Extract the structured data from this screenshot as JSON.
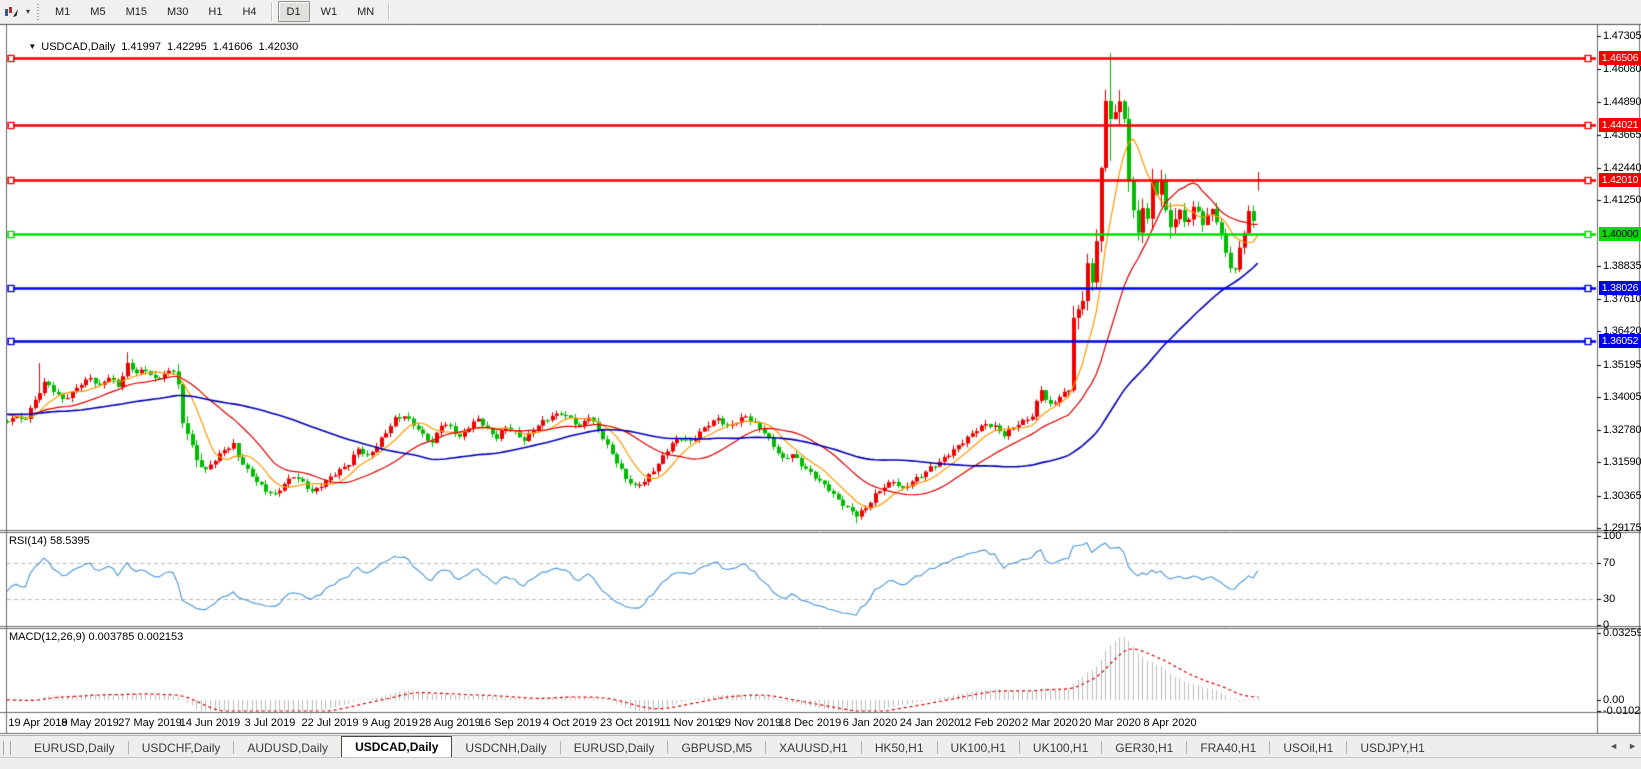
{
  "toolbar": {
    "timeframes": [
      "M1",
      "M5",
      "M15",
      "M30",
      "H1",
      "H4",
      "D1",
      "W1",
      "MN"
    ],
    "active_timeframe": "D1"
  },
  "window_title": {
    "dropdown_glyph": "▼",
    "symbol": "USDCAD,Daily",
    "open": "1.41997",
    "high": "1.42295",
    "low": "1.41606",
    "close": "1.42030"
  },
  "price_axis": {
    "ticks": [
      {
        "label": "1.47305",
        "price": 1.47305
      },
      {
        "label": "1.46080",
        "price": 1.4608
      },
      {
        "label": "1.44890",
        "price": 1.4489
      },
      {
        "label": "1.43665",
        "price": 1.43665
      },
      {
        "label": "1.42440",
        "price": 1.4244
      },
      {
        "label": "1.41250",
        "price": 1.4125
      },
      {
        "label": "1.38835",
        "price": 1.38835
      },
      {
        "label": "1.37610",
        "price": 1.3761
      },
      {
        "label": "1.36420",
        "price": 1.3642
      },
      {
        "label": "1.35195",
        "price": 1.35195
      },
      {
        "label": "1.34005",
        "price": 1.34005
      },
      {
        "label": "1.32780",
        "price": 1.3278
      },
      {
        "label": "1.31590",
        "price": 1.3159
      },
      {
        "label": "1.30365",
        "price": 1.30365
      },
      {
        "label": "1.29175",
        "price": 1.29175
      }
    ]
  },
  "hlines": [
    {
      "price": 1.46506,
      "label": "1.46506",
      "color": "#f40000",
      "text_color": "#ffffff"
    },
    {
      "price": 1.44021,
      "label": "1.44021",
      "color": "#f40000",
      "text_color": "#ffffff"
    },
    {
      "price": 1.4201,
      "label": "1.42010",
      "color": "#f40000",
      "text_color": "#ffffff"
    },
    {
      "price": 1.4,
      "label": "1.40000",
      "color": "#00dc00",
      "text_color": "#000000"
    },
    {
      "price": 1.38026,
      "label": "1.38026",
      "color": "#0000e8",
      "text_color": "#ffffff"
    },
    {
      "price": 1.36052,
      "label": "1.36052",
      "color": "#0000e8",
      "text_color": "#ffffff"
    }
  ],
  "rsi_panel": {
    "label": "RSI(14) 58.5395",
    "axis_labels": [
      {
        "label": "100",
        "value": 100
      },
      {
        "label": "70",
        "value": 70
      },
      {
        "label": "30",
        "value": 30
      },
      {
        "label": "0",
        "value": 0
      }
    ],
    "dashed_levels": [
      70,
      30
    ]
  },
  "macd_panel": {
    "label": "MACD(12,26,9) 0.003785 0.002153",
    "axis_labels": [
      {
        "label": "0.032595",
        "value": 0.032595
      },
      {
        "label": "0.00",
        "value": 0
      },
      {
        "label": "-0.010227",
        "value": -0.010227
      }
    ]
  },
  "date_axis": {
    "labels": [
      "19 Apr 2019",
      "8 May 2019",
      "27 May 2019",
      "14 Jun 2019",
      "3 Jul 2019",
      "22 Jul 2019",
      "9 Aug 2019",
      "28 Aug 2019",
      "16 Sep 2019",
      "4 Oct 2019",
      "23 Oct 2019",
      "11 Nov 2019",
      "29 Nov 2019",
      "18 Dec 2019",
      "6 Jan 2020",
      "24 Jan 2020",
      "12 Feb 2020",
      "2 Mar 2020",
      "20 Mar 2020",
      "8 Apr 2020"
    ]
  },
  "tabs": {
    "items": [
      {
        "label": "EURUSD,Daily",
        "active": false
      },
      {
        "label": "USDCHF,Daily",
        "active": false
      },
      {
        "label": "AUDUSD,Daily",
        "active": false
      },
      {
        "label": "USDCAD,Daily",
        "active": true
      },
      {
        "label": "USDCNH,Daily",
        "active": false
      },
      {
        "label": "EURUSD,Daily",
        "active": false
      },
      {
        "label": "GBPUSD,M5",
        "active": false
      },
      {
        "label": "XAUUSD,H1",
        "active": false
      },
      {
        "label": "HK50,H1",
        "active": false
      },
      {
        "label": "UK100,H1",
        "active": false
      },
      {
        "label": "UK100,H1",
        "active": false
      },
      {
        "label": "GER30,H1",
        "active": false
      },
      {
        "label": "FRA40,H1",
        "active": false
      },
      {
        "label": "USOil,H1",
        "active": false
      },
      {
        "label": "USDJPY,H1",
        "active": false
      }
    ],
    "scroll_left": "◄",
    "scroll_right": "►"
  },
  "chart_data": {
    "type": "candlestick",
    "symbol": "USDCAD",
    "timeframe": "Daily",
    "colors": {
      "bull_candle": "#ee0000",
      "bear_candle": "#00bb00",
      "ma_fast": "#ff9900",
      "ma_mid": "#dd0000",
      "ma_slow": "#0000b4",
      "rsi_line": "#4a96d8",
      "rsi_dashed_level": "#bbbbbb",
      "macd_histogram": "#bdbdbd",
      "macd_signal": "#e00000",
      "background": "#ffffff",
      "frame": "#6a6a6a"
    },
    "ma_periods": {
      "fast": 8,
      "mid": 21,
      "slow": 55
    },
    "price_range_top": 1.47305,
    "price_range_bottom": 1.29175,
    "rsi_scale": [
      0,
      100
    ],
    "close_anchors": [
      [
        0,
        1.336
      ],
      [
        1,
        1.3385
      ],
      [
        3,
        1.3455
      ],
      [
        5,
        1.3425
      ],
      [
        7,
        1.339
      ],
      [
        9,
        1.3415
      ],
      [
        11,
        1.345
      ],
      [
        13,
        1.347
      ],
      [
        15,
        1.344
      ],
      [
        17,
        1.3475
      ],
      [
        19,
        1.344
      ],
      [
        21,
        1.352
      ],
      [
        23,
        1.349
      ],
      [
        25,
        1.35
      ],
      [
        27,
        1.3465
      ],
      [
        29,
        1.3485
      ],
      [
        31,
        1.35
      ],
      [
        32,
        1.3445
      ],
      [
        33,
        1.33
      ],
      [
        34,
        1.327
      ],
      [
        35,
        1.322
      ],
      [
        36,
        1.3165
      ],
      [
        38,
        1.313
      ],
      [
        40,
        1.317
      ],
      [
        42,
        1.3205
      ],
      [
        44,
        1.3225
      ],
      [
        45,
        1.318
      ],
      [
        47,
        1.313
      ],
      [
        49,
        1.309
      ],
      [
        51,
        1.3055
      ],
      [
        53,
        1.304
      ],
      [
        55,
        1.308
      ],
      [
        57,
        1.311
      ],
      [
        59,
        1.3085
      ],
      [
        61,
        1.305
      ],
      [
        63,
        1.3075
      ],
      [
        65,
        1.3105
      ],
      [
        67,
        1.313
      ],
      [
        69,
        1.3155
      ],
      [
        71,
        1.321
      ],
      [
        73,
        1.318
      ],
      [
        75,
        1.322
      ],
      [
        77,
        1.327
      ],
      [
        79,
        1.332
      ],
      [
        81,
        1.333
      ],
      [
        83,
        1.33
      ],
      [
        85,
        1.326
      ],
      [
        87,
        1.323
      ],
      [
        89,
        1.33
      ],
      [
        91,
        1.329
      ],
      [
        93,
        1.325
      ],
      [
        95,
        1.329
      ],
      [
        97,
        1.332
      ],
      [
        99,
        1.328
      ],
      [
        101,
        1.325
      ],
      [
        103,
        1.329
      ],
      [
        105,
        1.327
      ],
      [
        107,
        1.324
      ],
      [
        109,
        1.328
      ],
      [
        111,
        1.331
      ],
      [
        113,
        1.333
      ],
      [
        115,
        1.334
      ],
      [
        117,
        1.332
      ],
      [
        119,
        1.329
      ],
      [
        121,
        1.333
      ],
      [
        123,
        1.328
      ],
      [
        125,
        1.322
      ],
      [
        127,
        1.316
      ],
      [
        129,
        1.31
      ],
      [
        131,
        1.307
      ],
      [
        133,
        1.309
      ],
      [
        135,
        1.313
      ],
      [
        137,
        1.318
      ],
      [
        139,
        1.323
      ],
      [
        141,
        1.325
      ],
      [
        143,
        1.3235
      ],
      [
        145,
        1.327
      ],
      [
        147,
        1.33
      ],
      [
        149,
        1.332
      ],
      [
        151,
        1.329
      ],
      [
        153,
        1.331
      ],
      [
        155,
        1.333
      ],
      [
        157,
        1.33
      ],
      [
        159,
        1.327
      ],
      [
        161,
        1.322
      ],
      [
        163,
        1.317
      ],
      [
        165,
        1.319
      ],
      [
        167,
        1.315
      ],
      [
        169,
        1.312
      ],
      [
        171,
        1.309
      ],
      [
        173,
        1.306
      ],
      [
        175,
        1.302
      ],
      [
        177,
        1.299
      ],
      [
        179,
        1.2965
      ],
      [
        181,
        1.299
      ],
      [
        183,
        1.304
      ],
      [
        185,
        1.307
      ],
      [
        187,
        1.309
      ],
      [
        189,
        1.306
      ],
      [
        191,
        1.309
      ],
      [
        193,
        1.311
      ],
      [
        195,
        1.314
      ],
      [
        197,
        1.316
      ],
      [
        199,
        1.319
      ],
      [
        201,
        1.322
      ],
      [
        203,
        1.325
      ],
      [
        205,
        1.328
      ],
      [
        207,
        1.33
      ],
      [
        209,
        1.329
      ],
      [
        211,
        1.326
      ],
      [
        213,
        1.329
      ],
      [
        215,
        1.331
      ],
      [
        217,
        1.333
      ],
      [
        219,
        1.343
      ],
      [
        220,
        1.339
      ],
      [
        221,
        1.337
      ],
      [
        223,
        1.34
      ],
      [
        225,
        1.343
      ],
      [
        226,
        1.369
      ],
      [
        227,
        1.372
      ],
      [
        228,
        1.376
      ],
      [
        229,
        1.389
      ],
      [
        230,
        1.382
      ],
      [
        231,
        1.398
      ],
      [
        232,
        1.424
      ],
      [
        233,
        1.449
      ],
      [
        234,
        1.443
      ],
      [
        235,
        1.4445
      ],
      [
        236,
        1.449
      ],
      [
        237,
        1.443
      ],
      [
        238,
        1.419
      ],
      [
        239,
        1.409
      ],
      [
        240,
        1.401
      ],
      [
        241,
        1.409
      ],
      [
        242,
        1.406
      ],
      [
        243,
        1.42
      ],
      [
        244,
        1.414
      ],
      [
        245,
        1.42
      ],
      [
        246,
        1.409
      ],
      [
        247,
        1.402
      ],
      [
        248,
        1.406
      ],
      [
        249,
        1.409
      ],
      [
        250,
        1.404
      ],
      [
        251,
        1.406
      ],
      [
        252,
        1.41
      ],
      [
        253,
        1.408
      ],
      [
        254,
        1.404
      ],
      [
        255,
        1.407
      ],
      [
        256,
        1.409
      ],
      [
        257,
        1.405
      ],
      [
        258,
        1.4
      ],
      [
        259,
        1.393
      ],
      [
        260,
        1.388
      ],
      [
        261,
        1.3865
      ],
      [
        262,
        1.395
      ],
      [
        263,
        1.401
      ],
      [
        264,
        1.408
      ],
      [
        265,
        1.405
      ],
      [
        266,
        1.4203
      ]
    ],
    "special_bars": {
      "2": {
        "h": 1.3525
      },
      "21": {
        "h": 1.3565
      },
      "179": {
        "l": 1.2935
      },
      "233": {
        "l": 1.423
      },
      "234": {
        "h": 1.4668,
        "l": 1.427
      },
      "261": {
        "l": 1.3855
      },
      "266": {
        "o": 1.41997,
        "h": 1.42295,
        "l": 1.41606,
        "c": 1.4203
      }
    },
    "last_day": 266
  }
}
